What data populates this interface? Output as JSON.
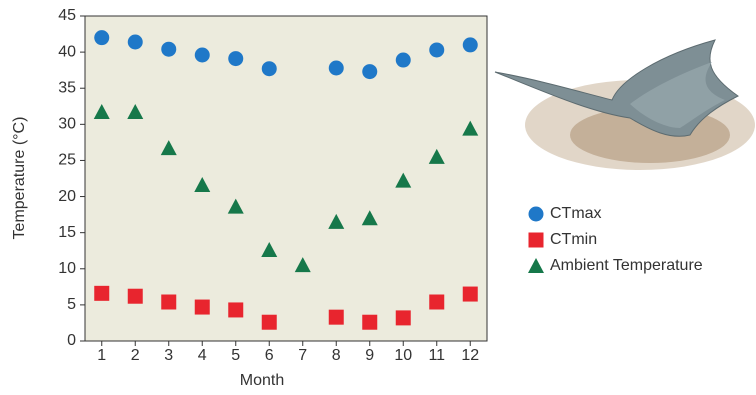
{
  "chart_data": {
    "type": "scatter",
    "x_label": "Month",
    "y_label": "Temperature (°C)",
    "x": [
      1,
      2,
      3,
      4,
      5,
      6,
      7,
      8,
      9,
      10,
      11,
      12
    ],
    "xlim": [
      0.5,
      12.5
    ],
    "xticks": [
      1,
      2,
      3,
      4,
      5,
      6,
      7,
      8,
      9,
      10,
      11,
      12
    ],
    "ylim": [
      0,
      45
    ],
    "yticks": [
      0,
      5,
      10,
      15,
      20,
      25,
      30,
      35,
      40,
      45
    ],
    "series": [
      {
        "name": "CTmax",
        "color": "#1f78c8",
        "marker": "circle",
        "values": [
          42.0,
          41.4,
          40.4,
          39.6,
          39.1,
          37.7,
          null,
          37.8,
          37.3,
          38.9,
          40.3,
          41.0
        ]
      },
      {
        "name": "CTmin",
        "color": "#e8252e",
        "marker": "square",
        "values": [
          6.6,
          6.2,
          5.4,
          4.7,
          4.3,
          2.6,
          null,
          3.3,
          2.6,
          3.2,
          5.4,
          6.5
        ]
      },
      {
        "name": "Ambient Temperature",
        "color": "#16784a",
        "marker": "triangle",
        "values": [
          31.7,
          31.7,
          26.7,
          21.6,
          18.6,
          12.6,
          10.5,
          16.5,
          17.0,
          22.2,
          25.5,
          29.4
        ]
      }
    ]
  }
}
